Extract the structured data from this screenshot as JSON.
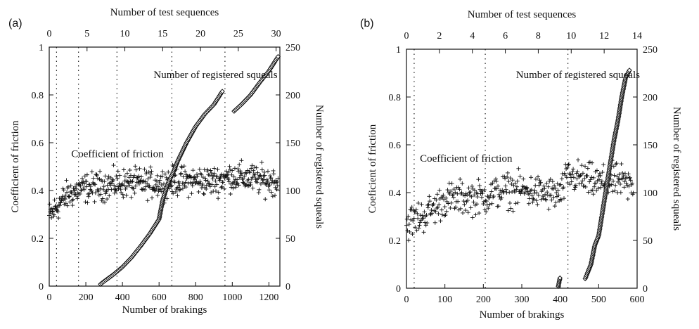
{
  "chart_data": [
    {
      "type": "scatter",
      "panel_label": "(a)",
      "xlabel": "Number of brakings",
      "x2label": "Number of test sequences",
      "ylabel": "Coefficient of friction",
      "y2label": "Number of registered squeals",
      "xlim": [
        0,
        1260
      ],
      "x2lim": [
        0,
        30.5
      ],
      "ylim": [
        0,
        1
      ],
      "y2lim": [
        0,
        250
      ],
      "xticks": [
        "0",
        "200",
        "400",
        "600",
        "800",
        "1000",
        "1200"
      ],
      "x2ticks": [
        "0",
        "5",
        "10",
        "15",
        "20",
        "25",
        "30"
      ],
      "yticks": [
        "0",
        "0.2",
        "0.4",
        "0.6",
        "0.8",
        "1"
      ],
      "y2ticks": [
        "0",
        "50",
        "100",
        "150",
        "200",
        "250"
      ],
      "grid": "vertical dotted lines at test-sequence boundaries",
      "sequence_boundaries": [
        40,
        160,
        370,
        670,
        960
      ],
      "annotations": [
        {
          "text": "Number of registered squeals",
          "at": [
            570,
            0.87
          ]
        },
        {
          "text": "Coefficient of friction",
          "at": [
            120,
            0.54
          ]
        }
      ],
      "series": [
        {
          "marker": "plus",
          "axis": "left",
          "points": [
            [
              0,
              0.29
            ],
            [
              30,
              0.32
            ],
            [
              60,
              0.35
            ],
            [
              100,
              0.38
            ],
            [
              150,
              0.4
            ],
            [
              200,
              0.41
            ],
            [
              300,
              0.42
            ],
            [
              400,
              0.43
            ],
            [
              500,
              0.43
            ],
            [
              600,
              0.43
            ],
            [
              700,
              0.44
            ],
            [
              800,
              0.44
            ],
            [
              900,
              0.44
            ],
            [
              1000,
              0.46
            ],
            [
              1100,
              0.45
            ],
            [
              1200,
              0.44
            ],
            [
              1250,
              0.44
            ]
          ],
          "spread": 0.03
        },
        {
          "marker": "diamond",
          "axis": "right",
          "points": [
            [
              280,
              2
            ],
            [
              300,
              5
            ],
            [
              350,
              12
            ],
            [
              400,
              20
            ],
            [
              450,
              30
            ],
            [
              500,
              42
            ],
            [
              550,
              55
            ],
            [
              600,
              70
            ],
            [
              620,
              90
            ],
            [
              650,
              108
            ],
            [
              680,
              120
            ],
            [
              700,
              130
            ],
            [
              750,
              150
            ],
            [
              800,
              167
            ],
            [
              850,
              180
            ],
            [
              900,
              190
            ],
            [
              950,
              205
            ],
            [
              1010,
              183
            ],
            [
              1050,
              190
            ],
            [
              1100,
              200
            ],
            [
              1150,
              213
            ],
            [
              1200,
              225
            ],
            [
              1250,
              240
            ]
          ]
        }
      ]
    },
    {
      "type": "scatter",
      "panel_label": "(b)",
      "xlabel": "Number of brakings",
      "x2label": "Number of test sequences",
      "ylabel": "Coeficient of friction",
      "y2label": "Number of registered squeals",
      "xlim": [
        0,
        600
      ],
      "x2lim": [
        0,
        14
      ],
      "ylim": [
        0,
        1
      ],
      "y2lim": [
        0,
        250
      ],
      "xticks": [
        "0",
        "100",
        "200",
        "300",
        "400",
        "500",
        "600"
      ],
      "x2ticks": [
        "0",
        "2",
        "4",
        "6",
        "8",
        "10",
        "12",
        "14"
      ],
      "yticks": [
        "0",
        "0.2",
        "0.4",
        "0.6",
        "0.8",
        "1"
      ],
      "y2ticks": [
        "0",
        "50",
        "100",
        "150",
        "200",
        "250"
      ],
      "grid": "vertical dotted lines at test-sequence boundaries",
      "sequence_boundaries": [
        20,
        205,
        420
      ],
      "annotations": [
        {
          "text": "Number of registered squeals",
          "at": [
            285,
            0.88
          ]
        },
        {
          "text": "Coefficient of friction",
          "at": [
            35,
            0.53
          ]
        }
      ],
      "series": [
        {
          "marker": "plus",
          "axis": "left",
          "points": [
            [
              0,
              0.27
            ],
            [
              50,
              0.31
            ],
            [
              100,
              0.37
            ],
            [
              150,
              0.38
            ],
            [
              200,
              0.38
            ],
            [
              250,
              0.41
            ],
            [
              300,
              0.41
            ],
            [
              350,
              0.4
            ],
            [
              400,
              0.39
            ],
            [
              420,
              0.47
            ],
            [
              450,
              0.46
            ],
            [
              500,
              0.44
            ],
            [
              550,
              0.45
            ],
            [
              590,
              0.42
            ]
          ],
          "spread": 0.035
        },
        {
          "marker": "diamond",
          "axis": "right",
          "points": [
            [
              395,
              2
            ],
            [
              398,
              8
            ],
            [
              400,
              12
            ],
            [
              465,
              10
            ],
            [
              470,
              15
            ],
            [
              480,
              25
            ],
            [
              490,
              45
            ],
            [
              500,
              55
            ],
            [
              510,
              80
            ],
            [
              520,
              105
            ],
            [
              530,
              130
            ],
            [
              540,
              155
            ],
            [
              550,
              175
            ],
            [
              560,
              200
            ],
            [
              570,
              220
            ],
            [
              580,
              228
            ]
          ]
        }
      ]
    }
  ]
}
